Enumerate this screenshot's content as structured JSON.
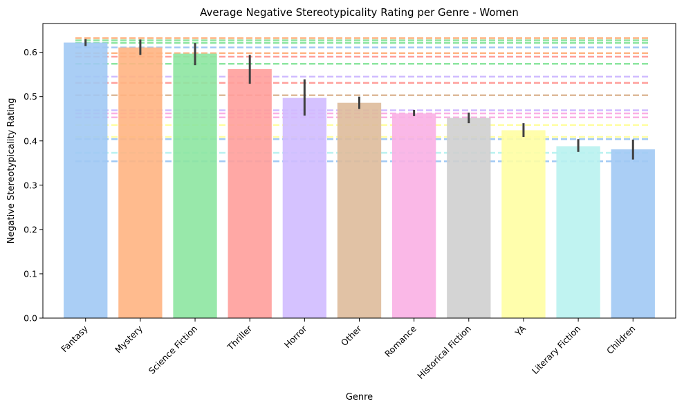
{
  "chart_data": {
    "type": "bar",
    "title": "Average Negative Stereotypicality Rating per Genre - Women",
    "xlabel": "Genre",
    "ylabel": "Negative Stereotypicality Rating",
    "ylim": [
      0,
      0.665
    ],
    "yticks": [
      "0.0",
      "0.1",
      "0.2",
      "0.3",
      "0.4",
      "0.5",
      "0.6"
    ],
    "grid": false,
    "categories": [
      "Fantasy",
      "Mystery",
      "Science Fiction",
      "Thriller",
      "Horror",
      "Other",
      "Romance",
      "Historical Fiction",
      "YA",
      "Literary Fiction",
      "Children"
    ],
    "values": [
      0.622,
      0.611,
      0.597,
      0.562,
      0.497,
      0.486,
      0.462,
      0.452,
      0.424,
      0.388,
      0.381
    ],
    "error_low": [
      0.614,
      0.594,
      0.571,
      0.529,
      0.457,
      0.472,
      0.456,
      0.44,
      0.409,
      0.375,
      0.358
    ],
    "error_high": [
      0.63,
      0.629,
      0.621,
      0.594,
      0.539,
      0.5,
      0.47,
      0.464,
      0.44,
      0.404,
      0.403
    ],
    "colors": [
      "#a1c9f4",
      "#ffb482",
      "#8de5a1",
      "#ff9f9b",
      "#d0bbff",
      "#debb9b",
      "#fab0e4",
      "#cfcfcf",
      "#fffea3",
      "#b9f2f0",
      "#a1c9f4"
    ],
    "reference_lines": [
      {
        "y": 0.632,
        "color": "#ffb482"
      },
      {
        "y": 0.627,
        "color": "#8de5a1"
      },
      {
        "y": 0.621,
        "color": "#8de5a1"
      },
      {
        "y": 0.611,
        "color": "#a1c9f4"
      },
      {
        "y": 0.598,
        "color": "#ffb482"
      },
      {
        "y": 0.59,
        "color": "#ff9f9b"
      },
      {
        "y": 0.574,
        "color": "#8de5a1"
      },
      {
        "y": 0.545,
        "color": "#d0bbff"
      },
      {
        "y": 0.531,
        "color": "#ff9f9b"
      },
      {
        "y": 0.503,
        "color": "#debb9b"
      },
      {
        "y": 0.469,
        "color": "#d0bbff"
      },
      {
        "y": 0.462,
        "color": "#fab0e4"
      },
      {
        "y": 0.453,
        "color": "#fab0e4"
      },
      {
        "y": 0.436,
        "color": "#fffea3"
      },
      {
        "y": 0.409,
        "color": "#fffea3"
      },
      {
        "y": 0.404,
        "color": "#a1c9f4"
      },
      {
        "y": 0.373,
        "color": "#b9f2f0"
      },
      {
        "y": 0.354,
        "color": "#a1c9f4"
      }
    ],
    "errorbar_color": "#3f3f3f"
  }
}
